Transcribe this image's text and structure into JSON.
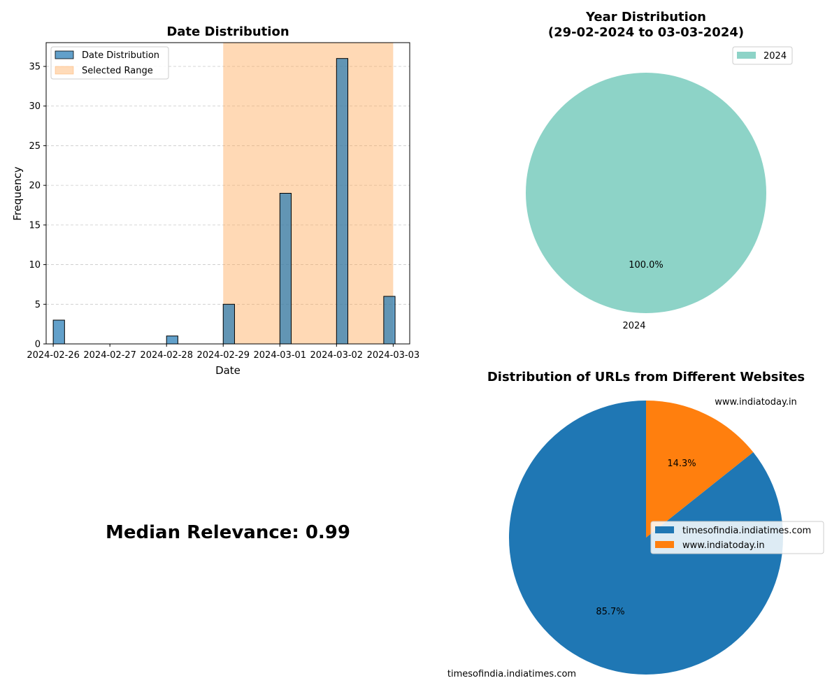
{
  "chart_data": [
    {
      "type": "bar",
      "title": "Date Distribution",
      "xlabel": "Date",
      "ylabel": "Frequency",
      "x_ticks": [
        "2024-02-26",
        "2024-02-27",
        "2024-02-28",
        "2024-02-29",
        "2024-03-01",
        "2024-03-02",
        "2024-03-03"
      ],
      "xlim": [
        "2024-02-25T21:00",
        "2024-03-03T07:00"
      ],
      "ylim": [
        0,
        38
      ],
      "y_ticks": [
        0,
        5,
        10,
        15,
        20,
        25,
        30,
        35
      ],
      "bins": [
        {
          "x": "2024-02-26T00:00",
          "value": 3
        },
        {
          "x": "2024-02-28T00:00",
          "value": 1
        },
        {
          "x": "2024-02-29T00:00",
          "value": 5
        },
        {
          "x": "2024-03-01T00:00",
          "value": 19
        },
        {
          "x": "2024-03-02T00:00",
          "value": 36
        },
        {
          "x": "2024-03-02T20:00",
          "value": 6
        }
      ],
      "bin_width_hours": 4.8,
      "selected_range": [
        "2024-02-29",
        "2024-03-03"
      ],
      "legend": [
        "Date Distribution",
        "Selected Range"
      ],
      "legend_position": "upper-left",
      "grid": "y dashed",
      "colors": {
        "bars": "#1f77b4",
        "range": "#ffa54f"
      }
    },
    {
      "type": "pie",
      "title": "Year Distribution\n(29-02-2024 to 03-03-2024)",
      "title_lines": [
        "Year Distribution",
        "(29-02-2024 to 03-03-2024)"
      ],
      "labels": [
        "2024"
      ],
      "values": [
        100.0
      ],
      "pct_labels": [
        "100.0%"
      ],
      "legend": [
        "2024"
      ],
      "legend_position": "upper-right",
      "colors": [
        "#8dd3c7"
      ]
    },
    {
      "type": "pie",
      "title": "Distribution of URLs from Different Websites",
      "labels": [
        "timesofindia.indiatimes.com",
        "www.indiatoday.in"
      ],
      "values": [
        85.7,
        14.3
      ],
      "pct_labels": [
        "85.7%",
        "14.3%"
      ],
      "legend": [
        "timesofindia.indiatimes.com",
        "www.indiatoday.in"
      ],
      "legend_position": "center-right",
      "colors": [
        "#1f77b4",
        "#ff7f0e"
      ]
    }
  ],
  "median_text": "Median Relevance: 0.99"
}
